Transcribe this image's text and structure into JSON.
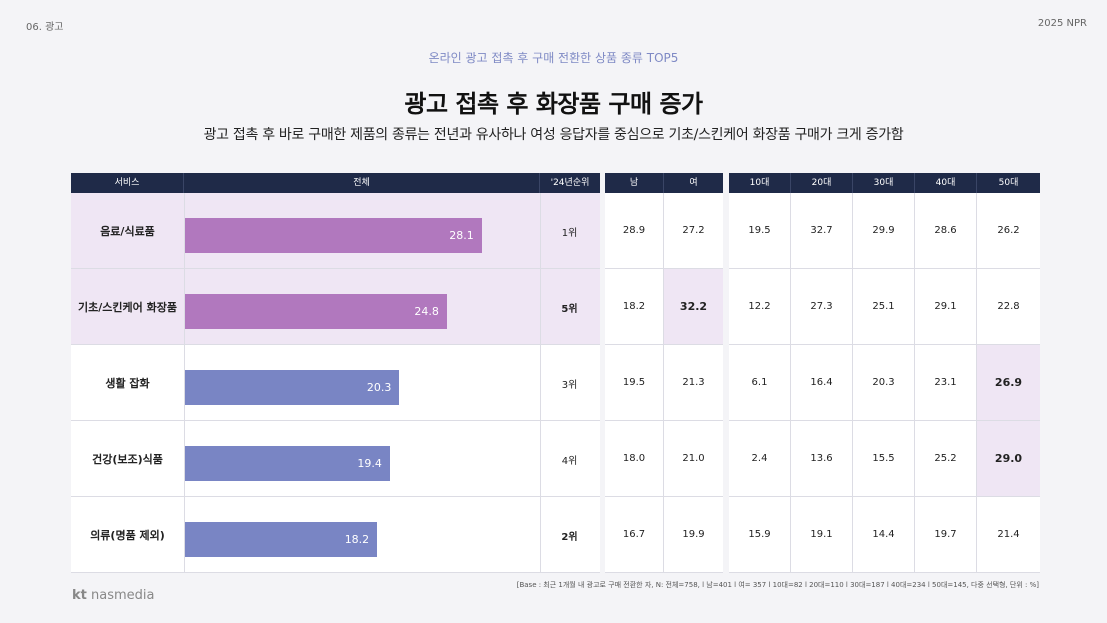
{
  "header": {
    "section": "06. 광고",
    "report": "2025 NPR"
  },
  "subtitle": "온라인 광고 접촉 후 구매 전환한 상품 종류 TOP5",
  "title": "광고 접촉 후 화장품 구매 증가",
  "description": "광고 접촉 후 바로 구매한 제품의 종류는 전년과 유사하나 여성 응답자를 중심으로 기초/스킨케어 화장품 구매가 크게 증가함",
  "columns": {
    "service": "서비스",
    "total": "전체",
    "rank": "'24년순위",
    "male": "남",
    "female": "여",
    "age10": "10대",
    "age20": "20대",
    "age30": "30대",
    "age40": "40대",
    "age50": "50대"
  },
  "colors": {
    "purple_bar": "#b178be",
    "blue_bar": "#7985c4",
    "highlight": "#efe6f4",
    "header_bg": "#1f2a48"
  },
  "chart_data": {
    "type": "bar",
    "orientation": "horizontal",
    "categories": [
      "음료/식료품",
      "기초/스킨케어 화장품",
      "생활 잡화",
      "건강(보조)식품",
      "의류(명품 제외)"
    ],
    "values": [
      28.1,
      24.8,
      20.3,
      19.4,
      18.2
    ],
    "value_labels": [
      "28.1",
      "24.8",
      "20.3",
      "19.4",
      "18.2"
    ],
    "xlim": [
      0,
      40
    ],
    "highlighted_rows": [
      0,
      1
    ]
  },
  "rows": [
    {
      "service": "음료/식료품",
      "rank": "1위",
      "male": "28.9",
      "female": "27.2",
      "a10": "19.5",
      "a20": "32.7",
      "a30": "29.9",
      "a40": "28.6",
      "a50": "26.2"
    },
    {
      "service": "기초/스킨케어 화장품",
      "rank": "5위",
      "male": "18.2",
      "female": "32.2",
      "a10": "12.2",
      "a20": "27.3",
      "a30": "25.1",
      "a40": "29.1",
      "a50": "22.8"
    },
    {
      "service": "생활 잡화",
      "rank": "3위",
      "male": "19.5",
      "female": "21.3",
      "a10": "6.1",
      "a20": "16.4",
      "a30": "20.3",
      "a40": "23.1",
      "a50": "26.9"
    },
    {
      "service": "건강(보조)식품",
      "rank": "4위",
      "male": "18.0",
      "female": "21.0",
      "a10": "2.4",
      "a20": "13.6",
      "a30": "15.5",
      "a40": "25.2",
      "a50": "29.0"
    },
    {
      "service": "의류(명품 제외)",
      "rank": "2위",
      "male": "16.7",
      "female": "19.9",
      "a10": "15.9",
      "a20": "19.1",
      "a30": "14.4",
      "a40": "19.7",
      "a50": "21.4"
    }
  ],
  "footnote": "[Base : 최근 1개월 내 광고로 구매 전환한 자, N: 전체=758, l 남=401 l 여= 357 l 10대=82 l 20대=110 l 30대=187 l 40대=234 l 50대=145, 다중 선택형, 단위 : %]",
  "logo": {
    "mark": "kt",
    "name": "nasmedia"
  }
}
